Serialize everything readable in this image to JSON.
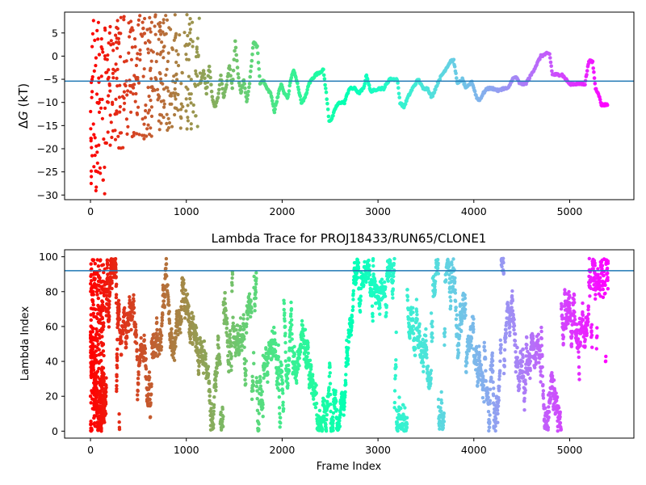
{
  "chart_data": [
    {
      "type": "scatter",
      "title": "",
      "xlabel": "",
      "ylabel": "ΔG (kT)",
      "ylabel_parts": {
        "delta": "Δ",
        "var": "G",
        "unit": " (kT)"
      },
      "xlim": [
        -270,
        5670
      ],
      "ylim": [
        -31,
        9.5
      ],
      "xticks": [
        0,
        1000,
        2000,
        3000,
        4000,
        5000
      ],
      "yticks": [
        5,
        0,
        -5,
        -10,
        -15,
        -20,
        -25,
        -30
      ],
      "hline": -5.4,
      "hline_color": "#1f77b4",
      "colormap": "rainbow",
      "grid": false,
      "series_desc": "point cloud colored by frame index; early frames widely scattered (-30 to 9), later frames trace a continuous path",
      "path_points": [
        [
          1150,
          -6
        ],
        [
          1180,
          -3
        ],
        [
          1210,
          -8
        ],
        [
          1240,
          -2
        ],
        [
          1270,
          -9
        ],
        [
          1300,
          -11
        ],
        [
          1330,
          -9
        ],
        [
          1360,
          -4
        ],
        [
          1390,
          -9
        ],
        [
          1420,
          -6
        ],
        [
          1450,
          -2
        ],
        [
          1480,
          -7
        ],
        [
          1510,
          3
        ],
        [
          1540,
          -4
        ],
        [
          1570,
          -8
        ],
        [
          1600,
          -5
        ],
        [
          1630,
          -10
        ],
        [
          1660,
          -6
        ],
        [
          1700,
          3
        ],
        [
          1740,
          2
        ],
        [
          1770,
          -6
        ],
        [
          1800,
          -5
        ],
        [
          1840,
          -7
        ],
        [
          1880,
          -8
        ],
        [
          1920,
          -12
        ],
        [
          1950,
          -9
        ],
        [
          1990,
          -6
        ],
        [
          2020,
          -8
        ],
        [
          2060,
          -9
        ],
        [
          2090,
          -5
        ],
        [
          2120,
          -3
        ],
        [
          2160,
          -6
        ],
        [
          2200,
          -10
        ],
        [
          2240,
          -9
        ],
        [
          2280,
          -6
        ],
        [
          2310,
          -5
        ],
        [
          2350,
          -4
        ],
        [
          2390,
          -3.5
        ],
        [
          2430,
          -3
        ],
        [
          2460,
          -8
        ],
        [
          2490,
          -14
        ],
        [
          2520,
          -13.5
        ],
        [
          2560,
          -11
        ],
        [
          2600,
          -10
        ],
        [
          2650,
          -10
        ],
        [
          2700,
          -7
        ],
        [
          2760,
          -7
        ],
        [
          2800,
          -8
        ],
        [
          2850,
          -7
        ],
        [
          2880,
          -4
        ],
        [
          2920,
          -7.5
        ],
        [
          2950,
          -7.5
        ],
        [
          3000,
          -7
        ],
        [
          3060,
          -7
        ],
        [
          3120,
          -5
        ],
        [
          3200,
          -5
        ],
        [
          3230,
          -10
        ],
        [
          3270,
          -11
        ],
        [
          3310,
          -9
        ],
        [
          3360,
          -7
        ],
        [
          3420,
          -5
        ],
        [
          3470,
          -7
        ],
        [
          3520,
          -7
        ],
        [
          3560,
          -9
        ],
        [
          3600,
          -7
        ],
        [
          3640,
          -5
        ],
        [
          3700,
          -3
        ],
        [
          3760,
          -1
        ],
        [
          3790,
          -1
        ],
        [
          3830,
          -6
        ],
        [
          3880,
          -5
        ],
        [
          3920,
          -7
        ],
        [
          3980,
          -5.5
        ],
        [
          4030,
          -9
        ],
        [
          4060,
          -9.5
        ],
        [
          4100,
          -8
        ],
        [
          4140,
          -7
        ],
        [
          4200,
          -7
        ],
        [
          4260,
          -7.5
        ],
        [
          4300,
          -7
        ],
        [
          4360,
          -7
        ],
        [
          4400,
          -5
        ],
        [
          4440,
          -4.5
        ],
        [
          4480,
          -6
        ],
        [
          4540,
          -6
        ],
        [
          4600,
          -4
        ],
        [
          4650,
          -2
        ],
        [
          4700,
          0
        ],
        [
          4760,
          0.5
        ],
        [
          4790,
          0.5
        ],
        [
          4820,
          -4
        ],
        [
          4860,
          -4
        ],
        [
          4920,
          -4
        ],
        [
          4960,
          -5
        ],
        [
          5000,
          -6
        ],
        [
          5060,
          -6
        ],
        [
          5110,
          -6
        ],
        [
          5160,
          -6
        ],
        [
          5200,
          -1
        ],
        [
          5240,
          -1.3
        ],
        [
          5270,
          -7
        ],
        [
          5300,
          -8
        ],
        [
          5330,
          -10.5
        ],
        [
          5370,
          -10.5
        ],
        [
          5400,
          -10.5
        ]
      ]
    },
    {
      "type": "scatter",
      "title": "Lambda Trace for PROJ18433/RUN65/CLONE1",
      "xlabel": "Frame Index",
      "ylabel": "Lambda Index",
      "xlim": [
        -270,
        5670
      ],
      "ylim": [
        -4,
        104
      ],
      "xticks": [
        0,
        1000,
        2000,
        3000,
        4000,
        5000
      ],
      "yticks": [
        100,
        80,
        60,
        40,
        20,
        0
      ],
      "hline": 92,
      "hline_color": "#1f77b4",
      "colormap": "rainbow",
      "grid": false,
      "series_desc": "lambda index (0-99) per frame, colored by frame index",
      "frame_range": [
        0,
        5400
      ],
      "lambda_range": [
        0,
        99
      ]
    }
  ]
}
